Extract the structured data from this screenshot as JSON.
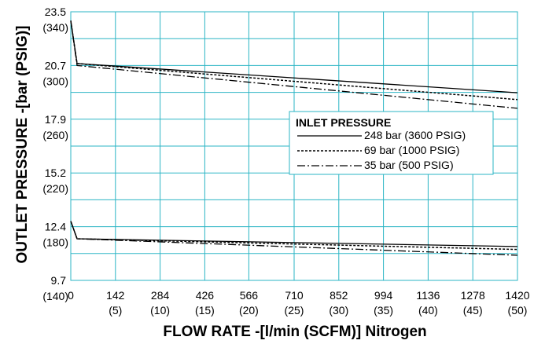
{
  "chart_data": {
    "type": "line",
    "xlabel": "FLOW RATE -[l/min (SCFM)] Nitrogen",
    "ylabel": "OUTLET PRESSURE -[bar (PSIG)]",
    "xlim": [
      0,
      1420
    ],
    "ylim": [
      9.66,
      23.46
    ],
    "grid": true,
    "grid_color": "#2bb5c5",
    "x_ticks": [
      {
        "value": 0,
        "label": "0",
        "sub": ""
      },
      {
        "value": 142,
        "label": "142",
        "sub": "(5)"
      },
      {
        "value": 284,
        "label": "284",
        "sub": "(10)"
      },
      {
        "value": 426,
        "label": "426",
        "sub": "(15)"
      },
      {
        "value": 566,
        "label": "566",
        "sub": "(20)"
      },
      {
        "value": 710,
        "label": "710",
        "sub": "(25)"
      },
      {
        "value": 852,
        "label": "852",
        "sub": "(30)"
      },
      {
        "value": 994,
        "label": "994",
        "sub": "(35)"
      },
      {
        "value": 1136,
        "label": "1136",
        "sub": "(40)"
      },
      {
        "value": 1278,
        "label": "1278",
        "sub": "(45)"
      },
      {
        "value": 1420,
        "label": "1420",
        "sub": "(50)"
      }
    ],
    "y_ticks": [
      {
        "value": 23.46,
        "label": "23.5",
        "sub": "(340)"
      },
      {
        "value": 20.7,
        "label": "20.7",
        "sub": "(300)"
      },
      {
        "value": 17.94,
        "label": "17.9",
        "sub": "(260)"
      },
      {
        "value": 15.18,
        "label": "15.2",
        "sub": "(220)"
      },
      {
        "value": 12.42,
        "label": "12.4",
        "sub": "(180)"
      },
      {
        "value": 9.66,
        "label": "9.7",
        "sub": "(140)"
      }
    ],
    "legend": {
      "title": "INLET PRESSURE",
      "placement": "right",
      "entries": [
        {
          "label": "248 bar (3600 PSIG)",
          "style": "solid"
        },
        {
          "label": "69 bar (1000 PSIG)",
          "style": "dotted"
        },
        {
          "label": "35 bar (500 PSIG)",
          "style": "dashdot"
        }
      ]
    },
    "series": [
      {
        "group": "upper",
        "style": "solid",
        "x": [
          0,
          20,
          1420
        ],
        "y": [
          23.0,
          20.8,
          19.3
        ]
      },
      {
        "group": "upper",
        "style": "dotted",
        "x": [
          0,
          20,
          1420
        ],
        "y": [
          23.0,
          20.8,
          18.95
        ]
      },
      {
        "group": "upper",
        "style": "dashdot",
        "x": [
          0,
          20,
          1420
        ],
        "y": [
          23.0,
          20.7,
          18.5
        ]
      },
      {
        "group": "lower",
        "style": "solid",
        "x": [
          0,
          20,
          1420
        ],
        "y": [
          12.7,
          11.8,
          11.4
        ]
      },
      {
        "group": "lower",
        "style": "dotted",
        "x": [
          0,
          20,
          1420
        ],
        "y": [
          12.7,
          11.8,
          11.25
        ]
      },
      {
        "group": "lower",
        "style": "dashdot",
        "x": [
          0,
          20,
          1420
        ],
        "y": [
          12.7,
          11.8,
          10.95
        ]
      }
    ]
  }
}
